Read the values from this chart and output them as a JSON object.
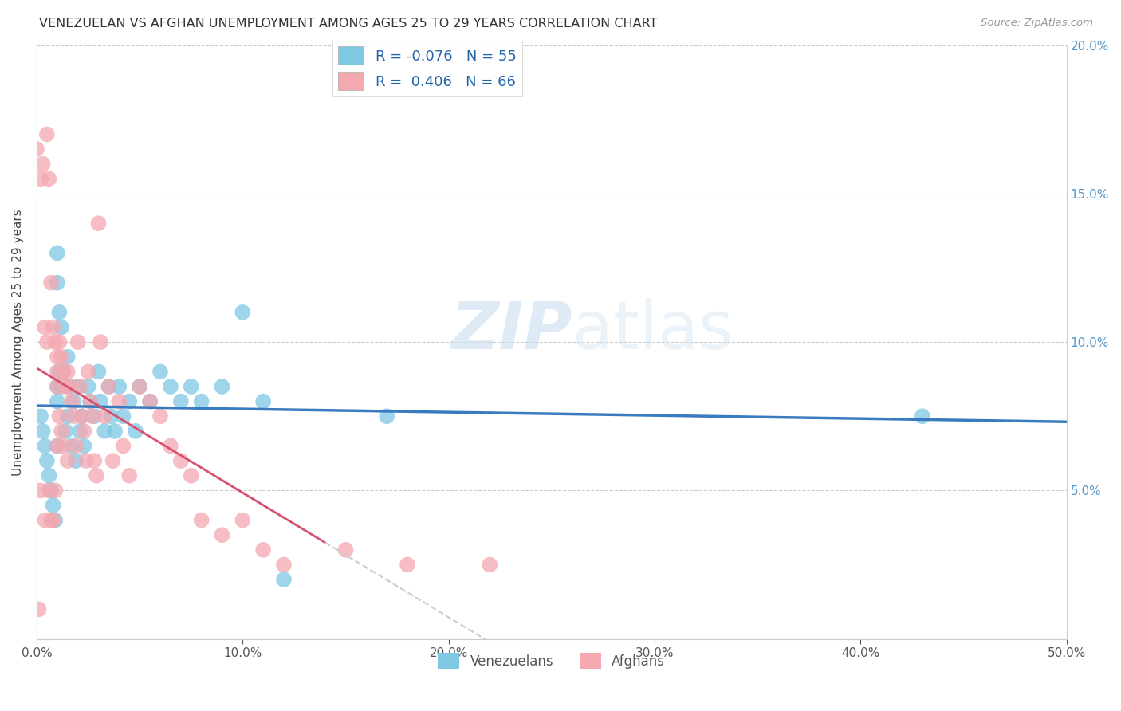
{
  "title": "VENEZUELAN VS AFGHAN UNEMPLOYMENT AMONG AGES 25 TO 29 YEARS CORRELATION CHART",
  "source": "Source: ZipAtlas.com",
  "ylabel": "Unemployment Among Ages 25 to 29 years",
  "xlim": [
    0,
    0.5
  ],
  "ylim": [
    0,
    0.2
  ],
  "xticks": [
    0.0,
    0.1,
    0.2,
    0.3,
    0.4,
    0.5
  ],
  "xtick_labels": [
    "0.0%",
    "10.0%",
    "20.0%",
    "30.0%",
    "40.0%",
    "50.0%"
  ],
  "yticks": [
    0.0,
    0.05,
    0.1,
    0.15,
    0.2
  ],
  "ytick_labels_right": [
    "",
    "5.0%",
    "10.0%",
    "15.0%",
    "20.0%"
  ],
  "legend_r_venezuelan": "-0.076",
  "legend_n_venezuelan": "55",
  "legend_r_afghan": "0.406",
  "legend_n_afghan": "66",
  "venezuelan_color": "#7ec8e3",
  "afghan_color": "#f4a8b0",
  "venezuelan_line_color": "#3a7bbf",
  "afghan_line_color": "#d94f6e",
  "watermark_zip": "ZIP",
  "watermark_atlas": "atlas",
  "venezuelan_x": [
    0.002,
    0.003,
    0.004,
    0.005,
    0.006,
    0.007,
    0.008,
    0.009,
    0.01,
    0.01,
    0.01,
    0.01,
    0.01,
    0.011,
    0.011,
    0.012,
    0.012,
    0.013,
    0.014,
    0.015,
    0.015,
    0.016,
    0.017,
    0.018,
    0.019,
    0.02,
    0.021,
    0.022,
    0.023,
    0.025,
    0.026,
    0.028,
    0.03,
    0.031,
    0.033,
    0.035,
    0.036,
    0.038,
    0.04,
    0.042,
    0.045,
    0.048,
    0.05,
    0.055,
    0.06,
    0.065,
    0.07,
    0.075,
    0.08,
    0.09,
    0.1,
    0.11,
    0.12,
    0.17,
    0.43
  ],
  "venezuelan_y": [
    0.075,
    0.07,
    0.065,
    0.06,
    0.055,
    0.05,
    0.045,
    0.04,
    0.13,
    0.12,
    0.085,
    0.08,
    0.065,
    0.11,
    0.09,
    0.105,
    0.085,
    0.09,
    0.07,
    0.095,
    0.075,
    0.085,
    0.065,
    0.08,
    0.06,
    0.085,
    0.07,
    0.075,
    0.065,
    0.085,
    0.08,
    0.075,
    0.09,
    0.08,
    0.07,
    0.085,
    0.075,
    0.07,
    0.085,
    0.075,
    0.08,
    0.07,
    0.085,
    0.08,
    0.09,
    0.085,
    0.08,
    0.085,
    0.08,
    0.085,
    0.11,
    0.08,
    0.02,
    0.075,
    0.075
  ],
  "afghan_x": [
    0.0,
    0.001,
    0.002,
    0.002,
    0.003,
    0.004,
    0.004,
    0.005,
    0.005,
    0.006,
    0.006,
    0.007,
    0.007,
    0.008,
    0.008,
    0.009,
    0.009,
    0.01,
    0.01,
    0.01,
    0.01,
    0.011,
    0.011,
    0.012,
    0.012,
    0.013,
    0.013,
    0.014,
    0.015,
    0.015,
    0.016,
    0.017,
    0.018,
    0.019,
    0.02,
    0.021,
    0.022,
    0.023,
    0.024,
    0.025,
    0.026,
    0.027,
    0.028,
    0.029,
    0.03,
    0.031,
    0.033,
    0.035,
    0.037,
    0.04,
    0.042,
    0.045,
    0.05,
    0.055,
    0.06,
    0.065,
    0.07,
    0.075,
    0.08,
    0.09,
    0.1,
    0.11,
    0.12,
    0.15,
    0.18,
    0.22
  ],
  "afghan_y": [
    0.165,
    0.01,
    0.155,
    0.05,
    0.16,
    0.105,
    0.04,
    0.17,
    0.1,
    0.155,
    0.05,
    0.12,
    0.04,
    0.105,
    0.04,
    0.1,
    0.05,
    0.095,
    0.09,
    0.085,
    0.065,
    0.1,
    0.075,
    0.095,
    0.07,
    0.09,
    0.065,
    0.085,
    0.09,
    0.06,
    0.085,
    0.08,
    0.075,
    0.065,
    0.1,
    0.085,
    0.075,
    0.07,
    0.06,
    0.09,
    0.08,
    0.075,
    0.06,
    0.055,
    0.14,
    0.1,
    0.075,
    0.085,
    0.06,
    0.08,
    0.065,
    0.055,
    0.085,
    0.08,
    0.075,
    0.065,
    0.06,
    0.055,
    0.04,
    0.035,
    0.04,
    0.03,
    0.025,
    0.03,
    0.025,
    0.025
  ]
}
